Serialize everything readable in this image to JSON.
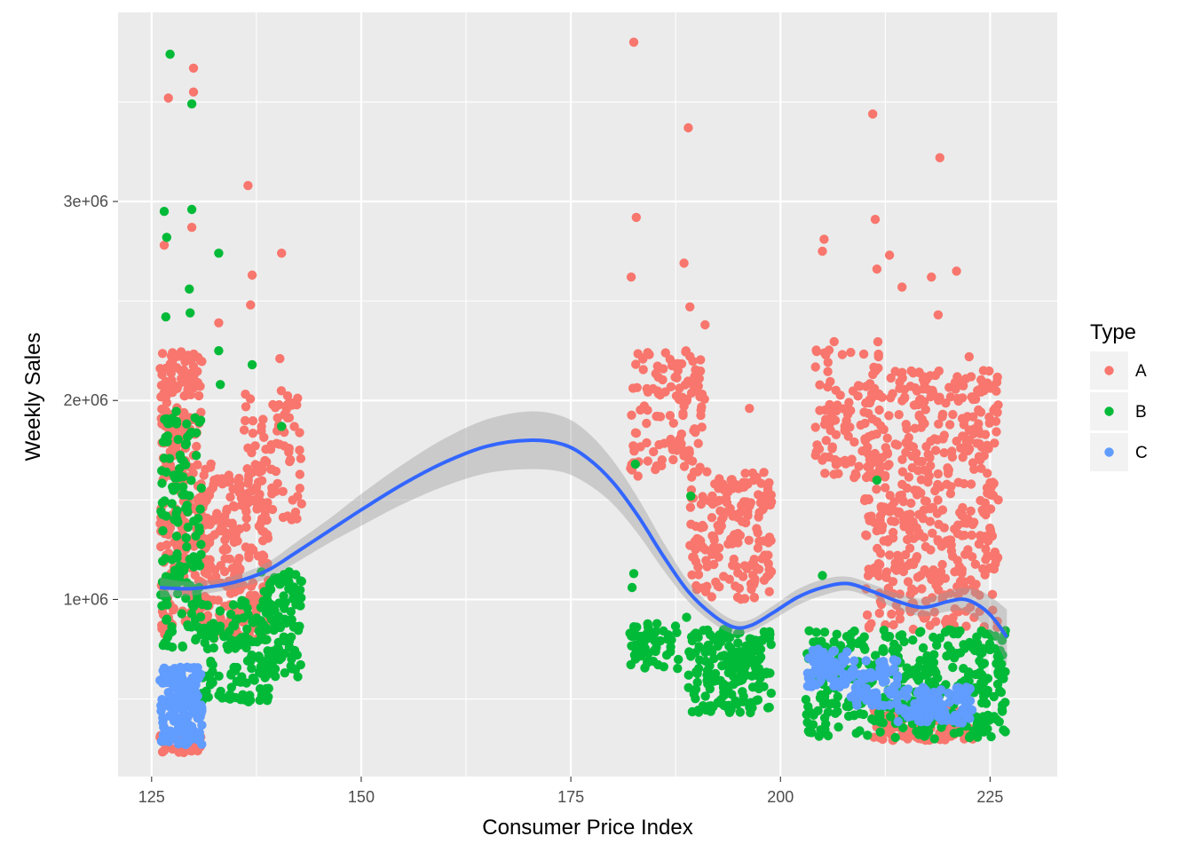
{
  "chart_data": {
    "type": "scatter",
    "xlabel": "Consumer Price Index",
    "ylabel": "Weekly Sales",
    "xlim": [
      121,
      233
    ],
    "ylim": [
      110000,
      3950000
    ],
    "x_ticks": [
      125,
      150,
      175,
      200,
      225
    ],
    "x_tick_labels": [
      "125",
      "150",
      "175",
      "200",
      "225"
    ],
    "y_ticks": [
      1000000,
      2000000,
      3000000
    ],
    "y_tick_labels": [
      "1e+06",
      "2e+06",
      "3e+06"
    ],
    "grid": true,
    "panel_background": "#ebebeb",
    "legend": {
      "title": "Type",
      "position": "right"
    },
    "series": [
      {
        "name": "A",
        "color": "#f8766d",
        "clusters": [
          {
            "x": [
              126,
              131
            ],
            "y": [
              800000,
              2250000
            ],
            "n": 260
          },
          {
            "x": [
              126,
              131
            ],
            "y": [
              230000,
              330000
            ],
            "n": 40
          },
          {
            "x": [
              131,
              139
            ],
            "y": [
              800000,
              1700000
            ],
            "n": 220
          },
          {
            "x": [
              136,
              143
            ],
            "y": [
              1400000,
              2050000
            ],
            "n": 90
          },
          {
            "x": [
              182,
              191
            ],
            "y": [
              1650000,
              2250000
            ],
            "n": 120
          },
          {
            "x": [
              189,
              199
            ],
            "y": [
              1000000,
              1650000
            ],
            "n": 170
          },
          {
            "x": [
              204,
              212
            ],
            "y": [
              1600000,
              2300000
            ],
            "n": 90
          },
          {
            "x": [
              210,
              226
            ],
            "y": [
              1100000,
              2150000
            ],
            "n": 420
          },
          {
            "x": [
              210,
              226
            ],
            "y": [
              850000,
              1150000
            ],
            "n": 90
          },
          {
            "x": [
              211,
              223
            ],
            "y": [
              290000,
              450000
            ],
            "n": 110
          }
        ],
        "points": [
          {
            "x": 127,
            "y": 3520000
          },
          {
            "x": 130,
            "y": 3670000
          },
          {
            "x": 130,
            "y": 3550000
          },
          {
            "x": 136.5,
            "y": 3080000
          },
          {
            "x": 126.5,
            "y": 2780000
          },
          {
            "x": 129.8,
            "y": 2870000
          },
          {
            "x": 137,
            "y": 2630000
          },
          {
            "x": 140.5,
            "y": 2740000
          },
          {
            "x": 136.8,
            "y": 2480000
          },
          {
            "x": 133,
            "y": 2390000
          },
          {
            "x": 140.3,
            "y": 2210000
          },
          {
            "x": 182.5,
            "y": 3800000
          },
          {
            "x": 189,
            "y": 3370000
          },
          {
            "x": 182.8,
            "y": 2920000
          },
          {
            "x": 182.2,
            "y": 2620000
          },
          {
            "x": 188.5,
            "y": 2690000
          },
          {
            "x": 189.2,
            "y": 2470000
          },
          {
            "x": 191,
            "y": 2380000
          },
          {
            "x": 211,
            "y": 3440000
          },
          {
            "x": 219,
            "y": 3220000
          },
          {
            "x": 205.2,
            "y": 2810000
          },
          {
            "x": 211.3,
            "y": 2910000
          },
          {
            "x": 205,
            "y": 2750000
          },
          {
            "x": 213,
            "y": 2730000
          },
          {
            "x": 211.5,
            "y": 2660000
          },
          {
            "x": 221,
            "y": 2650000
          },
          {
            "x": 218,
            "y": 2620000
          },
          {
            "x": 214.5,
            "y": 2570000
          },
          {
            "x": 218.8,
            "y": 2430000
          },
          {
            "x": 222.5,
            "y": 2220000
          },
          {
            "x": 183,
            "y": 1620000
          },
          {
            "x": 196.3,
            "y": 1960000
          },
          {
            "x": 198.5,
            "y": 1560000
          }
        ]
      },
      {
        "name": "B",
        "color": "#00ba38",
        "clusters": [
          {
            "x": [
              126,
              131
            ],
            "y": [
              760000,
              1950000
            ],
            "n": 150
          },
          {
            "x": [
              131,
              139
            ],
            "y": [
              480000,
              1000000
            ],
            "n": 130
          },
          {
            "x": [
              138,
              143
            ],
            "y": [
              600000,
              1150000
            ],
            "n": 110
          },
          {
            "x": [
              182,
              188
            ],
            "y": [
              650000,
              880000
            ],
            "n": 60
          },
          {
            "x": [
              189,
              199
            ],
            "y": [
              430000,
              850000
            ],
            "n": 190
          },
          {
            "x": [
              203,
              227
            ],
            "y": [
              300000,
              850000
            ],
            "n": 380
          }
        ],
        "points": [
          {
            "x": 127.2,
            "y": 3740000
          },
          {
            "x": 129.8,
            "y": 3490000
          },
          {
            "x": 126.5,
            "y": 2950000
          },
          {
            "x": 129.8,
            "y": 2960000
          },
          {
            "x": 126.8,
            "y": 2820000
          },
          {
            "x": 133,
            "y": 2740000
          },
          {
            "x": 129.5,
            "y": 2560000
          },
          {
            "x": 126.7,
            "y": 2420000
          },
          {
            "x": 129.6,
            "y": 2440000
          },
          {
            "x": 133,
            "y": 2250000
          },
          {
            "x": 137,
            "y": 2180000
          },
          {
            "x": 133.2,
            "y": 2080000
          },
          {
            "x": 140.5,
            "y": 1870000
          },
          {
            "x": 182.7,
            "y": 1680000
          },
          {
            "x": 189.3,
            "y": 1520000
          },
          {
            "x": 211.5,
            "y": 1600000
          },
          {
            "x": 182.5,
            "y": 1130000
          },
          {
            "x": 182.3,
            "y": 1060000
          },
          {
            "x": 188.8,
            "y": 910000
          },
          {
            "x": 205,
            "y": 1120000
          }
        ]
      },
      {
        "name": "C",
        "color": "#619cff",
        "clusters": [
          {
            "x": [
              126,
              131
            ],
            "y": [
              270000,
              660000
            ],
            "n": 170
          },
          {
            "x": [
              203,
              208
            ],
            "y": [
              560000,
              750000
            ],
            "n": 60
          },
          {
            "x": [
              208,
              214
            ],
            "y": [
              460000,
              700000
            ],
            "n": 80
          },
          {
            "x": [
              214,
              223
            ],
            "y": [
              380000,
              560000
            ],
            "n": 110
          }
        ],
        "points": []
      }
    ],
    "smooth": {
      "color": "#3366ff",
      "band_color": "#999999",
      "x": [
        126,
        128,
        130,
        133,
        136,
        139,
        142,
        146,
        150,
        155,
        160,
        165,
        170,
        174,
        177,
        180,
        183,
        186,
        189,
        192,
        194.5,
        196.5,
        199,
        202,
        205,
        208,
        211,
        214,
        217,
        220,
        222,
        224,
        225.5,
        227
      ],
      "y": [
        1060000,
        1055000,
        1055000,
        1070000,
        1100000,
        1150000,
        1230000,
        1340000,
        1450000,
        1580000,
        1690000,
        1770000,
        1800000,
        1780000,
        1710000,
        1590000,
        1420000,
        1220000,
        1040000,
        920000,
        860000,
        870000,
        930000,
        1010000,
        1060000,
        1080000,
        1040000,
        990000,
        960000,
        990000,
        1000000,
        960000,
        900000,
        810000
      ],
      "se": [
        50000,
        40000,
        35000,
        30000,
        35000,
        40000,
        50000,
        60000,
        80000,
        100000,
        120000,
        135000,
        145000,
        140000,
        130000,
        110000,
        90000,
        70000,
        50000,
        40000,
        35000,
        30000,
        35000,
        40000,
        40000,
        35000,
        35000,
        40000,
        45000,
        50000,
        60000,
        80000,
        100000,
        140000
      ]
    }
  }
}
